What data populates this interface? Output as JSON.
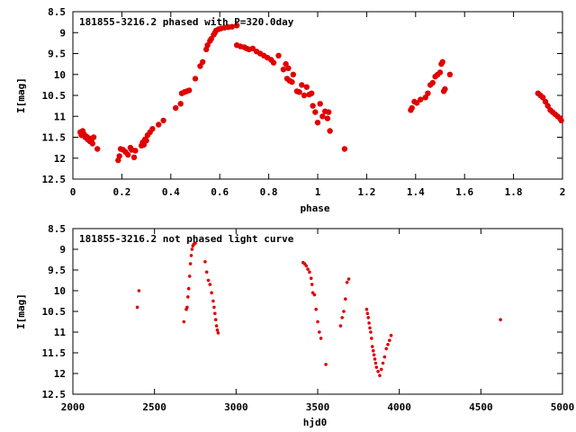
{
  "chart_data": [
    {
      "type": "scatter",
      "title": "181855-3216.2 phased with P=320.0day",
      "xlabel": "phase",
      "ylabel": "I[mag]",
      "xlim": [
        0,
        2
      ],
      "ylim": [
        12.5,
        8.5
      ],
      "y_inverted": true,
      "xticks": [
        "0",
        "0.2",
        "0.4",
        "0.6",
        "0.8",
        "1",
        "1.2",
        "1.4",
        "1.6",
        "1.8",
        "2"
      ],
      "yticks": [
        "8.5",
        "9",
        "9.5",
        "10",
        "10.5",
        "11",
        "11.5",
        "12",
        "12.5"
      ],
      "marker_color": "#e00000",
      "points": [
        [
          0.03,
          11.38
        ],
        [
          0.035,
          11.45
        ],
        [
          0.04,
          11.35
        ],
        [
          0.045,
          11.42
        ],
        [
          0.05,
          11.5
        ],
        [
          0.055,
          11.48
        ],
        [
          0.06,
          11.55
        ],
        [
          0.065,
          11.52
        ],
        [
          0.07,
          11.6
        ],
        [
          0.075,
          11.58
        ],
        [
          0.08,
          11.65
        ],
        [
          0.085,
          11.5
        ],
        [
          0.1,
          11.78
        ],
        [
          0.185,
          12.05
        ],
        [
          0.19,
          11.95
        ],
        [
          0.195,
          11.78
        ],
        [
          0.205,
          11.8
        ],
        [
          0.215,
          11.85
        ],
        [
          0.225,
          11.92
        ],
        [
          0.235,
          11.75
        ],
        [
          0.24,
          11.8
        ],
        [
          0.25,
          11.98
        ],
        [
          0.255,
          11.82
        ],
        [
          0.28,
          11.7
        ],
        [
          0.285,
          11.62
        ],
        [
          0.29,
          11.68
        ],
        [
          0.295,
          11.55
        ],
        [
          0.3,
          11.58
        ],
        [
          0.305,
          11.45
        ],
        [
          0.315,
          11.38
        ],
        [
          0.325,
          11.3
        ],
        [
          0.35,
          11.2
        ],
        [
          0.37,
          11.1
        ],
        [
          0.42,
          10.8
        ],
        [
          0.44,
          10.7
        ],
        [
          0.445,
          10.45
        ],
        [
          0.455,
          10.42
        ],
        [
          0.465,
          10.4
        ],
        [
          0.475,
          10.38
        ],
        [
          0.5,
          10.1
        ],
        [
          0.52,
          9.8
        ],
        [
          0.53,
          9.7
        ],
        [
          0.545,
          9.4
        ],
        [
          0.55,
          9.3
        ],
        [
          0.56,
          9.2
        ],
        [
          0.565,
          9.15
        ],
        [
          0.575,
          9.05
        ],
        [
          0.58,
          9.0
        ],
        [
          0.585,
          8.95
        ],
        [
          0.595,
          8.92
        ],
        [
          0.605,
          8.9
        ],
        [
          0.62,
          8.88
        ],
        [
          0.635,
          8.87
        ],
        [
          0.65,
          8.86
        ],
        [
          0.67,
          8.83
        ],
        [
          0.67,
          9.3
        ],
        [
          0.685,
          9.33
        ],
        [
          0.7,
          9.35
        ],
        [
          0.71,
          9.38
        ],
        [
          0.72,
          9.4
        ],
        [
          0.735,
          9.38
        ],
        [
          0.75,
          9.45
        ],
        [
          0.765,
          9.5
        ],
        [
          0.78,
          9.55
        ],
        [
          0.795,
          9.6
        ],
        [
          0.81,
          9.65
        ],
        [
          0.82,
          9.72
        ],
        [
          0.84,
          9.55
        ],
        [
          0.86,
          9.88
        ],
        [
          0.87,
          9.75
        ],
        [
          0.88,
          9.85
        ],
        [
          0.875,
          10.1
        ],
        [
          0.885,
          10.15
        ],
        [
          0.895,
          10.18
        ],
        [
          0.9,
          10.0
        ],
        [
          0.915,
          10.4
        ],
        [
          0.925,
          10.42
        ],
        [
          0.935,
          10.25
        ],
        [
          0.945,
          10.5
        ],
        [
          0.955,
          10.3
        ],
        [
          0.965,
          10.48
        ],
        [
          0.975,
          10.45
        ],
        [
          0.98,
          10.75
        ],
        [
          0.99,
          10.9
        ],
        [
          1.0,
          11.15
        ],
        [
          1.01,
          10.7
        ],
        [
          1.02,
          11.0
        ],
        [
          1.03,
          10.88
        ],
        [
          1.04,
          11.05
        ],
        [
          1.045,
          10.9
        ],
        [
          1.05,
          11.35
        ],
        [
          1.11,
          11.78
        ],
        [
          1.38,
          10.85
        ],
        [
          1.385,
          10.8
        ],
        [
          1.395,
          10.65
        ],
        [
          1.405,
          10.68
        ],
        [
          1.42,
          10.6
        ],
        [
          1.44,
          10.55
        ],
        [
          1.45,
          10.45
        ],
        [
          1.46,
          10.25
        ],
        [
          1.47,
          10.2
        ],
        [
          1.48,
          10.05
        ],
        [
          1.49,
          10.0
        ],
        [
          1.5,
          9.95
        ],
        [
          1.505,
          9.75
        ],
        [
          1.51,
          9.7
        ],
        [
          1.515,
          10.4
        ],
        [
          1.52,
          10.35
        ],
        [
          1.54,
          10.0
        ],
        [
          1.9,
          10.45
        ],
        [
          1.91,
          10.5
        ],
        [
          1.92,
          10.55
        ],
        [
          1.93,
          10.65
        ],
        [
          1.94,
          10.75
        ],
        [
          1.95,
          10.85
        ],
        [
          1.96,
          10.9
        ],
        [
          1.97,
          10.95
        ],
        [
          1.98,
          11.0
        ],
        [
          1.99,
          11.05
        ],
        [
          1.995,
          11.1
        ]
      ]
    },
    {
      "type": "scatter",
      "title": "181855-3216.2 not phased light curve",
      "xlabel": "hjd0",
      "ylabel": "I[mag]",
      "xlim": [
        2000,
        5000
      ],
      "ylim": [
        12.5,
        8.5
      ],
      "y_inverted": true,
      "xticks": [
        "2000",
        "2500",
        "3000",
        "3500",
        "4000",
        "4500",
        "5000"
      ],
      "yticks": [
        "8.5",
        "9",
        "9.5",
        "10",
        "10.5",
        "11",
        "11.5",
        "12",
        "12.5"
      ],
      "marker_color": "#e00000",
      "points": [
        [
          2395,
          10.4
        ],
        [
          2405,
          10.0
        ],
        [
          2680,
          10.75
        ],
        [
          2695,
          10.45
        ],
        [
          2700,
          10.4
        ],
        [
          2705,
          10.15
        ],
        [
          2710,
          9.95
        ],
        [
          2715,
          9.65
        ],
        [
          2720,
          9.35
        ],
        [
          2725,
          9.15
        ],
        [
          2730,
          9.0
        ],
        [
          2735,
          8.92
        ],
        [
          2740,
          8.88
        ],
        [
          2745,
          8.86
        ],
        [
          2750,
          8.85
        ],
        [
          2810,
          9.3
        ],
        [
          2820,
          9.55
        ],
        [
          2830,
          9.75
        ],
        [
          2840,
          9.85
        ],
        [
          2850,
          10.05
        ],
        [
          2860,
          10.25
        ],
        [
          2865,
          10.4
        ],
        [
          2870,
          10.55
        ],
        [
          2875,
          10.7
        ],
        [
          2880,
          10.85
        ],
        [
          2885,
          10.95
        ],
        [
          2890,
          11.02
        ],
        [
          3410,
          9.32
        ],
        [
          3420,
          9.35
        ],
        [
          3430,
          9.4
        ],
        [
          3440,
          9.48
        ],
        [
          3450,
          9.55
        ],
        [
          3460,
          9.7
        ],
        [
          3465,
          9.85
        ],
        [
          3470,
          10.05
        ],
        [
          3480,
          10.1
        ],
        [
          3490,
          10.45
        ],
        [
          3500,
          10.75
        ],
        [
          3510,
          11.0
        ],
        [
          3520,
          11.15
        ],
        [
          3550,
          11.78
        ],
        [
          3640,
          10.85
        ],
        [
          3650,
          10.65
        ],
        [
          3660,
          10.5
        ],
        [
          3670,
          10.2
        ],
        [
          3680,
          9.8
        ],
        [
          3690,
          9.72
        ],
        [
          3800,
          10.45
        ],
        [
          3805,
          10.55
        ],
        [
          3810,
          10.65
        ],
        [
          3815,
          10.78
        ],
        [
          3820,
          10.9
        ],
        [
          3825,
          11.0
        ],
        [
          3830,
          11.15
        ],
        [
          3835,
          11.35
        ],
        [
          3840,
          11.45
        ],
        [
          3845,
          11.55
        ],
        [
          3850,
          11.65
        ],
        [
          3855,
          11.75
        ],
        [
          3860,
          11.85
        ],
        [
          3870,
          11.95
        ],
        [
          3880,
          12.05
        ],
        [
          3890,
          11.9
        ],
        [
          3900,
          11.75
        ],
        [
          3910,
          11.6
        ],
        [
          3920,
          11.4
        ],
        [
          3930,
          11.3
        ],
        [
          3940,
          11.2
        ],
        [
          3950,
          11.08
        ],
        [
          4620,
          10.7
        ]
      ]
    }
  ]
}
